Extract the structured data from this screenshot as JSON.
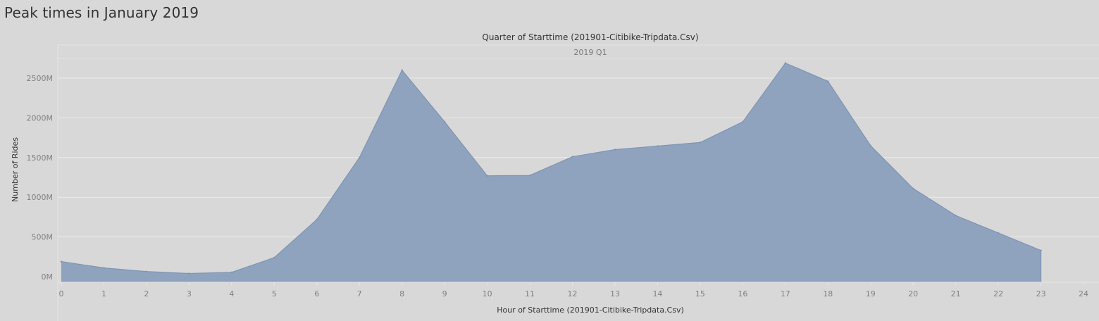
{
  "page": {
    "title": "Peak times in January 2019"
  },
  "chart_data": {
    "type": "area",
    "title": "Peak times in January 2019",
    "column_header": "Quarter of Starttime (201901-Citibike-Tripdata.Csv)",
    "column_value": "2019 Q1",
    "xlabel": "Hour of Starttime (201901-Citibike-Tripdata.Csv)",
    "ylabel": "Number of Rides",
    "x": [
      0,
      1,
      2,
      3,
      4,
      5,
      6,
      7,
      8,
      9,
      10,
      11,
      12,
      13,
      14,
      15,
      16,
      17,
      18,
      19,
      20,
      21,
      22,
      23
    ],
    "values": [
      190,
      110,
      65,
      40,
      55,
      240,
      720,
      1500,
      2600,
      1950,
      1270,
      1275,
      1510,
      1600,
      1645,
      1690,
      1950,
      2690,
      2460,
      1650,
      1110,
      770,
      550,
      330
    ],
    "value_unit": "M",
    "xlim": [
      0,
      24
    ],
    "x_ticks": [
      "0",
      "1",
      "2",
      "3",
      "4",
      "5",
      "6",
      "7",
      "8",
      "9",
      "10",
      "11",
      "12",
      "13",
      "14",
      "15",
      "16",
      "17",
      "18",
      "19",
      "20",
      "21",
      "22",
      "23",
      "24"
    ],
    "ylim": [
      -80,
      2900
    ],
    "y_ticks": [
      {
        "value": 0,
        "label": "0M"
      },
      {
        "value": 500,
        "label": "500M"
      },
      {
        "value": 1000,
        "label": "1000M"
      },
      {
        "value": 1500,
        "label": "1500M"
      },
      {
        "value": 2000,
        "label": "2000M"
      },
      {
        "value": 2500,
        "label": "2500M"
      }
    ],
    "grid": true,
    "colors": {
      "fill": "#8fa3bf",
      "line": "#7f94b3",
      "background": "#d8d8d8",
      "grid": "#ececec"
    }
  }
}
